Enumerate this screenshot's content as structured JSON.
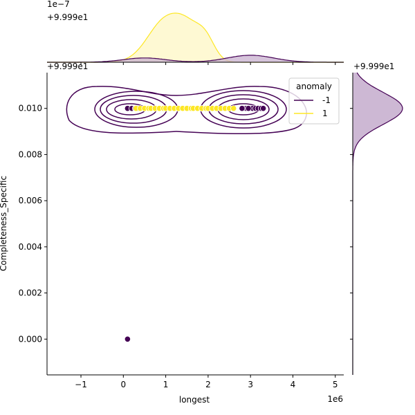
{
  "chart_data": {
    "type": "scatter",
    "title": "",
    "xlabel": "longest",
    "ylabel": "Completeness_Specific",
    "x_scale_label": "1e6",
    "y_offset_label": "+9.999e1",
    "marg_x_scale_label": "1e−7",
    "marg_x_offset_label": "+9.999e1",
    "marg_y_offset_label": "+9.999e1",
    "xlim": [
      -1.8,
      5.2
    ],
    "ylim": [
      -0.00155,
      0.01155
    ],
    "x_ticks": [
      -1,
      0,
      1,
      2,
      3,
      4,
      5
    ],
    "x_tick_labels": [
      "−1",
      "0",
      "1",
      "2",
      "3",
      "4",
      "5"
    ],
    "y_ticks": [
      0,
      0.002,
      0.004,
      0.006,
      0.008,
      0.01
    ],
    "y_tick_labels": [
      "0.000",
      "0.002",
      "0.004",
      "0.006",
      "0.008",
      "0.010"
    ],
    "grid": false,
    "legend": {
      "title": "anomaly",
      "placement": "top-right",
      "entries": [
        {
          "label": "-1",
          "color": "#440154"
        },
        {
          "label": "1",
          "color": "#fde725"
        }
      ]
    },
    "series": [
      {
        "name": "-1",
        "color": "#440154",
        "x": [
          0.1,
          0.2,
          0.28,
          0.35,
          0.1,
          2.85,
          2.9,
          3.0,
          3.05,
          3.12,
          3.18,
          3.25,
          3.3,
          2.8,
          2.95
        ],
        "y": [
          0.01,
          0.01,
          0.01,
          0.01,
          0.0,
          0.01,
          0.01,
          0.01,
          0.01,
          0.01,
          0.01,
          0.01,
          0.01,
          0.01,
          0.01
        ]
      },
      {
        "name": "1",
        "color": "#fde725",
        "x": [
          0.3,
          0.4,
          0.5,
          0.6,
          0.65,
          0.75,
          0.85,
          0.95,
          1.0,
          1.1,
          1.2,
          1.3,
          1.4,
          1.5,
          1.6,
          1.65,
          1.75,
          1.85,
          1.95,
          2.0,
          2.1,
          2.2,
          2.3,
          2.4,
          2.5,
          2.6
        ],
        "y": [
          0.01,
          0.01,
          0.01,
          0.01,
          0.01,
          0.01,
          0.01,
          0.01,
          0.01,
          0.01,
          0.01,
          0.01,
          0.01,
          0.01,
          0.01,
          0.01,
          0.01,
          0.01,
          0.01,
          0.01,
          0.01,
          0.01,
          0.01,
          0.01,
          0.01,
          0.01
        ]
      }
    ],
    "contour_series": "-1",
    "marginal_x_density": {
      "-1": {
        "color": "#440154",
        "fill": "#c8b0cf",
        "peaks": [
          {
            "mu": 0.5,
            "sigma": 0.5,
            "h": 0.08
          },
          {
            "mu": 3.0,
            "sigma": 0.55,
            "h": 0.13
          }
        ]
      },
      "1": {
        "color": "#fde725",
        "fill": "#fef7c4",
        "peaks": [
          {
            "mu": 1.0,
            "sigma": 0.42,
            "h": 0.78
          },
          {
            "mu": 1.55,
            "sigma": 0.3,
            "h": 0.42
          },
          {
            "mu": 1.95,
            "sigma": 0.22,
            "h": 0.35
          }
        ]
      }
    },
    "marginal_y_density": {
      "-1": {
        "color": "#440154",
        "fill": "#c8b0cf",
        "mu": 0.01,
        "sigma": 0.0007
      }
    }
  }
}
